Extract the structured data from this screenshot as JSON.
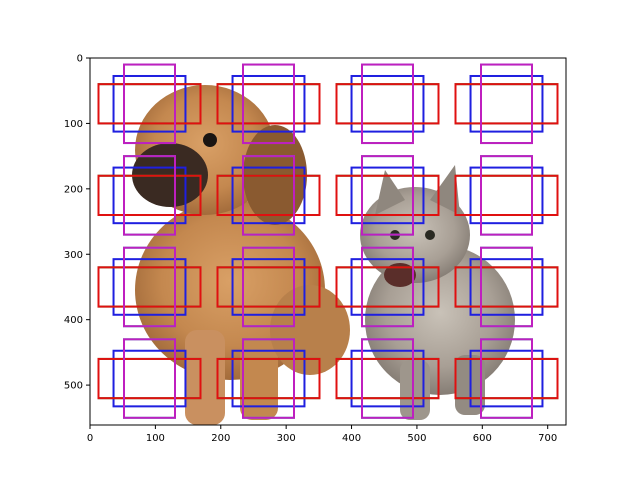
{
  "chart_data": {
    "type": "image_with_anchor_boxes",
    "xlim": [
      0,
      728
    ],
    "ylim": [
      0,
      561
    ],
    "y_inverted": true,
    "x_ticks": [
      0,
      100,
      200,
      300,
      400,
      500,
      600,
      700
    ],
    "y_ticks": [
      0,
      100,
      200,
      300,
      400,
      500
    ],
    "grid": false,
    "image": {
      "description_icon": "puppy-and-kitten-photo",
      "extent": [
        0,
        728,
        561,
        0
      ]
    },
    "anchor_centers": {
      "x": [
        91,
        273,
        455,
        637
      ],
      "y": [
        70,
        210,
        350,
        490
      ]
    },
    "box_shapes": [
      {
        "color": "#1f1fe0",
        "width": 110,
        "height": 85
      },
      {
        "color": "#228b22",
        "width": 156,
        "height": 60
      },
      {
        "color": "#e01010",
        "width": 156,
        "height": 60
      },
      {
        "color": "#1fbfbf",
        "width": 78,
        "height": 120
      },
      {
        "color": "#bf1fbf",
        "width": 78,
        "height": 120
      }
    ],
    "anchor_order": {
      "box_shapes_per_center": [
        [
          "#1f1fe0",
          "#228b22",
          "#e01010",
          "#1fbfbf",
          "#bf1fbf"
        ]
      ]
    }
  }
}
